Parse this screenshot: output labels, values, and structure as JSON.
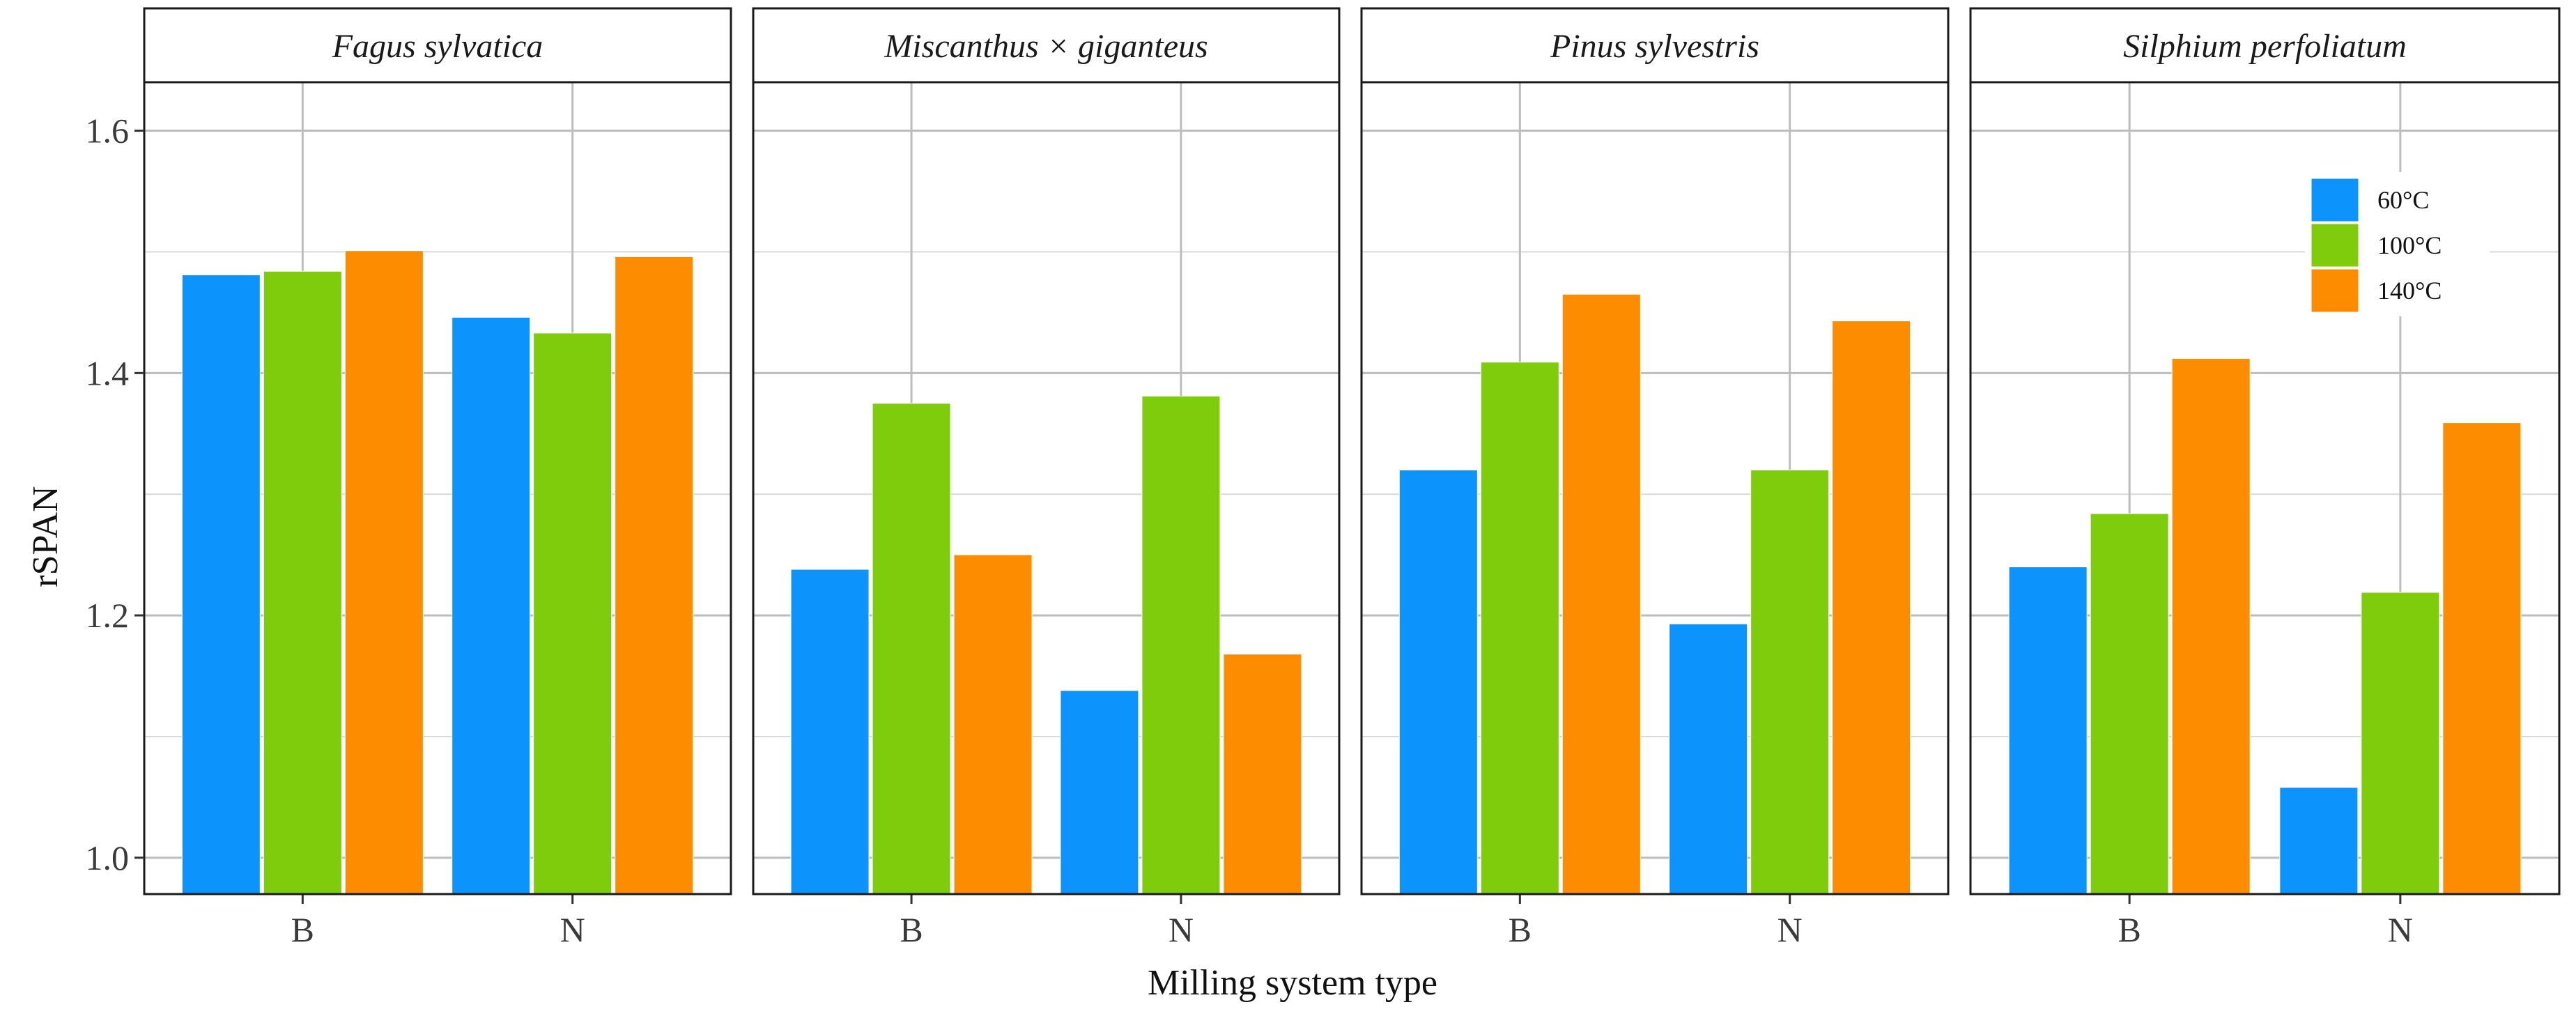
{
  "chart_data": {
    "type": "bar",
    "title": "",
    "xlabel": "Milling system type",
    "ylabel": "rSPAN",
    "ylim": [
      0.97,
      1.64
    ],
    "yticks": [
      "1.0",
      "1.2",
      "1.4",
      "1.6"
    ],
    "ytick_values": [
      1.0,
      1.2,
      1.4,
      1.6
    ],
    "grid": true,
    "legend_position": "top-right",
    "categories": [
      "B",
      "N"
    ],
    "series_colors": [
      "#0d94fc",
      "#7fcc0d",
      "#fe8c00"
    ],
    "facets": [
      {
        "title": "Fagus sylvatica",
        "series": [
          {
            "name": "60°C",
            "values": [
              1.481,
              1.446
            ]
          },
          {
            "name": "100°C",
            "values": [
              1.484,
              1.433
            ]
          },
          {
            "name": "140°C",
            "values": [
              1.501,
              1.496
            ]
          }
        ]
      },
      {
        "title": "Miscanthus × giganteus",
        "series": [
          {
            "name": "60°C",
            "values": [
              1.238,
              1.138
            ]
          },
          {
            "name": "100°C",
            "values": [
              1.375,
              1.381
            ]
          },
          {
            "name": "140°C",
            "values": [
              1.25,
              1.168
            ]
          }
        ]
      },
      {
        "title": "Pinus sylvestris",
        "series": [
          {
            "name": "60°C",
            "values": [
              1.32,
              1.193
            ]
          },
          {
            "name": "100°C",
            "values": [
              1.409,
              1.32
            ]
          },
          {
            "name": "140°C",
            "values": [
              1.465,
              1.443
            ]
          }
        ]
      },
      {
        "title": "Silphium perfoliatum",
        "series": [
          {
            "name": "60°C",
            "values": [
              1.24,
              1.058
            ]
          },
          {
            "name": "100°C",
            "values": [
              1.284,
              1.219
            ]
          },
          {
            "name": "140°C",
            "values": [
              1.412,
              1.359
            ]
          }
        ]
      }
    ],
    "legend": [
      "60°C",
      "100°C",
      "140°C"
    ]
  }
}
